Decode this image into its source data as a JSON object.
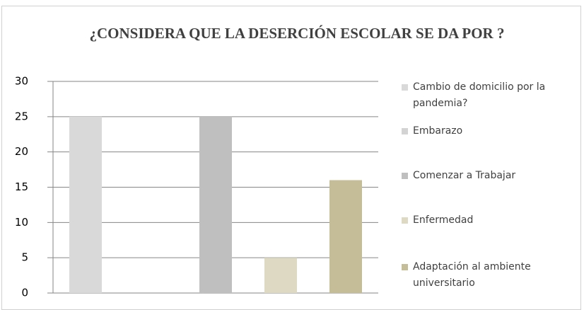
{
  "chart_data": {
    "type": "bar",
    "title": "¿CONSIDERA QUE LA DESERCIÓN ESCOLAR SE DA POR ?",
    "categories": [
      "Cambio de domicilio por la pandemia?",
      "Embarazo",
      "Comenzar a Trabajar",
      "Enfermedad",
      "Adaptación al ambiente universitario"
    ],
    "values": [
      25,
      0,
      25,
      5,
      16
    ],
    "colors": [
      "#d9d9d9",
      "#d3d3d3",
      "#bfbfbf",
      "#ddd9c3",
      "#c4bd97"
    ],
    "ylim": [
      0,
      30
    ],
    "yticks": [
      0,
      5,
      10,
      15,
      20,
      25,
      30
    ],
    "grid": true,
    "legend": "right"
  }
}
